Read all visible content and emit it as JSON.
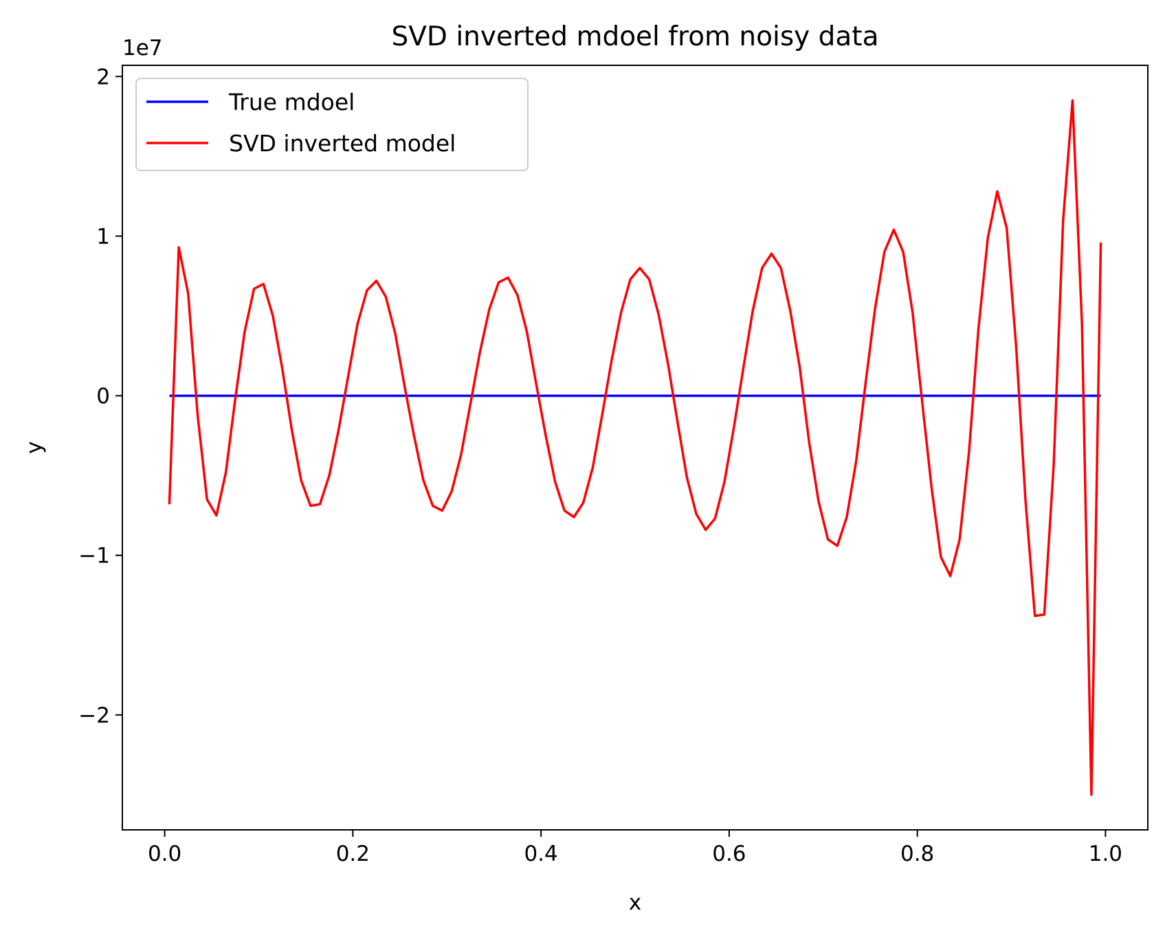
{
  "chart_data": {
    "type": "line",
    "title": "SVD inverted mdoel from noisy data",
    "xlabel": "x",
    "ylabel": "y",
    "y_offset_label": "1e7",
    "xlim": [
      -0.045,
      1.045
    ],
    "ylim": [
      -2.72,
      2.07
    ],
    "x_ticks": [
      0.0,
      0.2,
      0.4,
      0.6,
      0.8,
      1.0
    ],
    "x_tick_labels": [
      "0.0",
      "0.2",
      "0.4",
      "0.6",
      "0.8",
      "1.0"
    ],
    "y_ticks": [
      -2,
      -1,
      0,
      1,
      2
    ],
    "y_tick_labels": [
      "−2",
      "−1",
      "0",
      "1",
      "2"
    ],
    "grid": false,
    "legend_position": "top-left",
    "series": [
      {
        "name": "True mdoel",
        "color": "#0000ff",
        "x": [
          0.005,
          0.995
        ],
        "y": [
          0,
          0
        ]
      },
      {
        "name": "SVD inverted model",
        "color": "#ff0000",
        "x": [
          0.005,
          0.015,
          0.025,
          0.035,
          0.045,
          0.055,
          0.065,
          0.075,
          0.085,
          0.095,
          0.105,
          0.115,
          0.125,
          0.135,
          0.145,
          0.155,
          0.165,
          0.175,
          0.185,
          0.195,
          0.205,
          0.215,
          0.225,
          0.235,
          0.245,
          0.255,
          0.265,
          0.275,
          0.285,
          0.295,
          0.305,
          0.315,
          0.325,
          0.335,
          0.345,
          0.355,
          0.365,
          0.375,
          0.385,
          0.395,
          0.405,
          0.415,
          0.425,
          0.435,
          0.445,
          0.455,
          0.465,
          0.475,
          0.485,
          0.495,
          0.505,
          0.515,
          0.525,
          0.535,
          0.545,
          0.555,
          0.565,
          0.575,
          0.585,
          0.595,
          0.605,
          0.615,
          0.625,
          0.635,
          0.645,
          0.655,
          0.665,
          0.675,
          0.685,
          0.695,
          0.705,
          0.715,
          0.725,
          0.735,
          0.745,
          0.755,
          0.765,
          0.775,
          0.785,
          0.795,
          0.805,
          0.815,
          0.825,
          0.835,
          0.845,
          0.855,
          0.865,
          0.875,
          0.885,
          0.895,
          0.905,
          0.915,
          0.925,
          0.935,
          0.945,
          0.955,
          0.965,
          0.975,
          0.985,
          0.995
        ],
        "y": [
          -0.68,
          0.93,
          0.64,
          -0.12,
          -0.65,
          -0.75,
          -0.48,
          -0.02,
          0.4,
          0.67,
          0.7,
          0.5,
          0.17,
          -0.21,
          -0.53,
          -0.69,
          -0.68,
          -0.5,
          -0.21,
          0.12,
          0.45,
          0.66,
          0.72,
          0.62,
          0.39,
          0.06,
          -0.25,
          -0.53,
          -0.69,
          -0.72,
          -0.6,
          -0.37,
          -0.05,
          0.27,
          0.54,
          0.71,
          0.74,
          0.63,
          0.4,
          0.07,
          -0.25,
          -0.54,
          -0.72,
          -0.76,
          -0.67,
          -0.45,
          -0.12,
          0.22,
          0.52,
          0.73,
          0.8,
          0.73,
          0.51,
          0.2,
          -0.16,
          -0.51,
          -0.74,
          -0.84,
          -0.77,
          -0.54,
          -0.2,
          0.17,
          0.53,
          0.8,
          0.89,
          0.8,
          0.53,
          0.18,
          -0.29,
          -0.66,
          -0.9,
          -0.94,
          -0.76,
          -0.41,
          0.08,
          0.54,
          0.9,
          1.04,
          0.9,
          0.52,
          -0.03,
          -0.57,
          -1.01,
          -1.13,
          -0.9,
          -0.35,
          0.42,
          0.99,
          1.28,
          1.05,
          0.31,
          -0.66,
          -1.38,
          -1.37,
          -0.43,
          1.1,
          1.85,
          0.45,
          -2.5,
          0.96
        ]
      }
    ]
  }
}
